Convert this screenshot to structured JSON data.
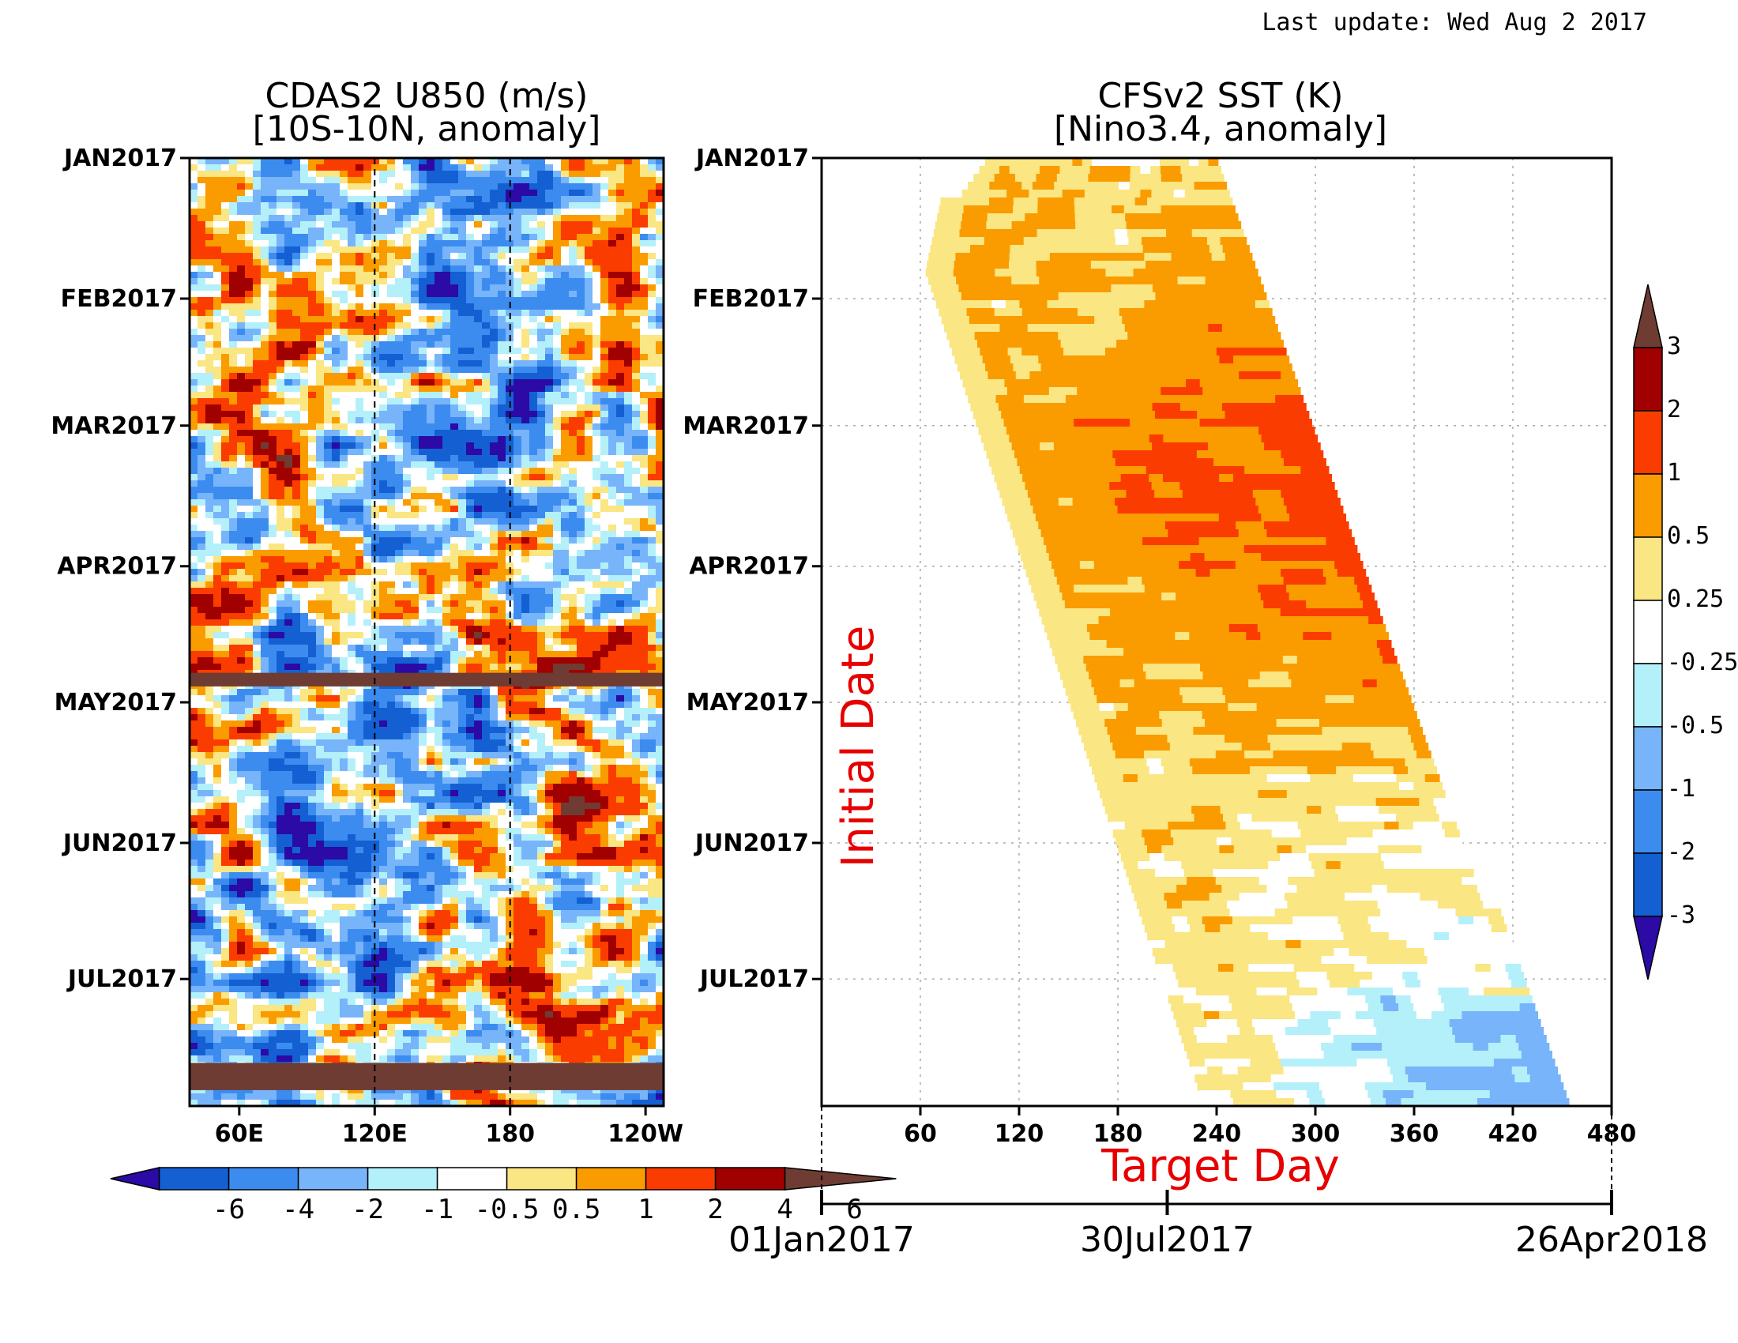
{
  "last_update": "Last update: Wed Aug 2 2017",
  "chart_data": [
    {
      "type": "heatmap",
      "title": "CDAS2 U850 (m/s)",
      "subtitle": "[10S-10N, anomaly]",
      "x_ticks": [
        "60E",
        "120E",
        "180",
        "120W"
      ],
      "x_tick_lon": [
        60,
        120,
        180,
        240
      ],
      "xlim": [
        38,
        248
      ],
      "y_ticks": [
        "JAN2017",
        "FEB2017",
        "MAR2017",
        "APR2017",
        "MAY2017",
        "JUN2017",
        "JUL2017"
      ],
      "y_tick_day": [
        0,
        31,
        59,
        90,
        120,
        151,
        181
      ],
      "ylim": [
        0,
        209
      ],
      "reference_lines_lon": [
        120,
        180
      ],
      "missing_bands_day": [
        [
          113.5,
          116.5
        ],
        [
          199.5,
          205.5
        ]
      ],
      "colorbar": {
        "labels": [
          "-6",
          "-4",
          "-2",
          "-1",
          "-0.5",
          "0.5",
          "1",
          "2",
          "4",
          "6"
        ],
        "colors": [
          "#2b0aa6",
          "#1460d2",
          "#3c8cf0",
          "#78b4fa",
          "#b4f0fa",
          "#ffffff",
          "#fae682",
          "#fa9c00",
          "#fa3c00",
          "#a00000",
          "#6e3c32"
        ]
      }
    },
    {
      "type": "heatmap",
      "title": "CFSv2 SST (K)",
      "subtitle": "[Nino3.4, anomaly]",
      "x_ticks": [
        "60",
        "120",
        "180",
        "240",
        "300",
        "360",
        "420",
        "480"
      ],
      "xlim": [
        0,
        480
      ],
      "xlabel": "Target Day",
      "ylabel": "Initial Date",
      "y_ticks": [
        "JAN2017",
        "FEB2017",
        "MAR2017",
        "APR2017",
        "MAY2017",
        "JUN2017",
        "JUL2017"
      ],
      "y_tick_day": [
        0,
        31,
        59,
        90,
        120,
        151,
        181
      ],
      "ylim": [
        0,
        209
      ],
      "date_axis": {
        "labels": [
          "01Jan2017",
          "30Jul2017",
          "26Apr2018"
        ],
        "days": [
          0,
          210,
          480
        ]
      },
      "colorbar": {
        "labels": [
          "3",
          "2",
          "1",
          "0.5",
          "0.25",
          "-0.25",
          "-0.5",
          "-1",
          "-2",
          "-3"
        ],
        "colors": [
          "#6e3c32",
          "#a00000",
          "#fa3c00",
          "#fa9c00",
          "#fae682",
          "#ffffff",
          "#b4f0fa",
          "#78b4fa",
          "#3c8cf0",
          "#1460d2",
          "#2b0aa6"
        ]
      }
    }
  ]
}
